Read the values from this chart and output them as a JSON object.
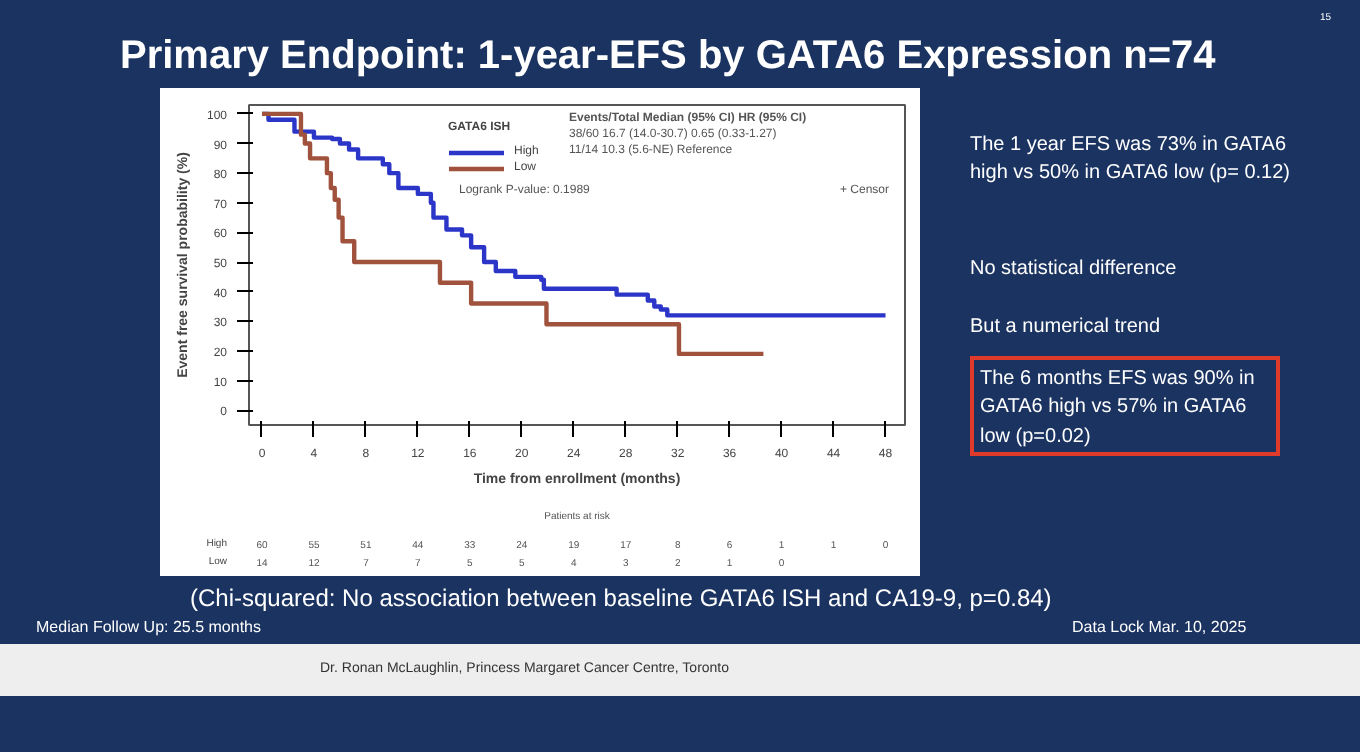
{
  "chart_data": {
    "type": "step",
    "title": "Primary Endpoint: 1-year-EFS by GATA6 Expression n=74",
    "xlabel": "Time from enrollment (months)",
    "ylabel": "Event free survival probability (%)",
    "legend_title": "GATA6 ISH",
    "xlim": [
      -1,
      49.5
    ],
    "ylim": [
      -5,
      103
    ],
    "xticks": [
      0,
      4,
      8,
      12,
      16,
      20,
      24,
      28,
      32,
      36,
      40,
      44,
      48
    ],
    "yticks": [
      0,
      10,
      20,
      30,
      40,
      50,
      60,
      70,
      80,
      90,
      100
    ],
    "grid": false,
    "legend": "top",
    "series": [
      {
        "name": "High",
        "color": "#2b35c8",
        "x": [
          0,
          0.5,
          2.5,
          4,
          5.4,
          6,
          6.7,
          7.4,
          9.3,
          9.8,
          10.5,
          12,
          13,
          13.2,
          14.2,
          15.4,
          16.1,
          17.1,
          18,
          19.5,
          21.5,
          21.7,
          27.3,
          29.7,
          30.2,
          30.7,
          31.2,
          48
        ],
        "values": [
          100,
          98,
          94,
          92,
          91.5,
          90,
          88,
          85,
          83,
          80,
          75,
          73,
          70,
          65,
          61,
          59,
          55,
          50,
          47,
          45,
          44,
          41,
          39,
          37,
          35,
          34,
          32,
          32
        ]
      },
      {
        "name": "Low",
        "color": "#a0523d",
        "x": [
          0,
          3,
          3.3,
          3.7,
          5,
          5.3,
          5.6,
          5.9,
          6.2,
          7.1,
          13.7,
          16.1,
          21.9,
          32.1,
          38.6
        ],
        "values": [
          100,
          93,
          90,
          85,
          80,
          75,
          71,
          65,
          57,
          50,
          43,
          36,
          29,
          19,
          19
        ]
      }
    ],
    "annotations": [
      "Events/Total   Median (95% CI)          HR (95% CI)",
      "38/60    16.7 (14.0-30.7)   0.65 (0.33-1.27)",
      "11/14    10.3 (5.6-NE)          Reference",
      "Logrank P-value: 0.1989",
      "+ Censor",
      "Patients at risk",
      "High 60 55 51 44 33 24 19 17 8 6 1 1 0",
      "Low 14 12 7 7 5 5 4 3 2 1 0",
      "The 1 year EFS was 73% in GATA6 high vs 50% in GATA6 low (p= 0.12)",
      "No statistical difference\nBut a numerical trend",
      "The 6 months EFS was 90% in GATA6 high vs 57% in GATA6 low (p=0.02)",
      "(Chi-squared: No association between baseline GATA6 ISH and CA19-9, p=0.84)",
      "Median Follow Up: 25.5 months",
      "Data Lock Mar. 10, 2025",
      "Dr. Ronan McLaughlin, Princess Margaret Cancer Centre, Toronto",
      "15"
    ]
  }
}
